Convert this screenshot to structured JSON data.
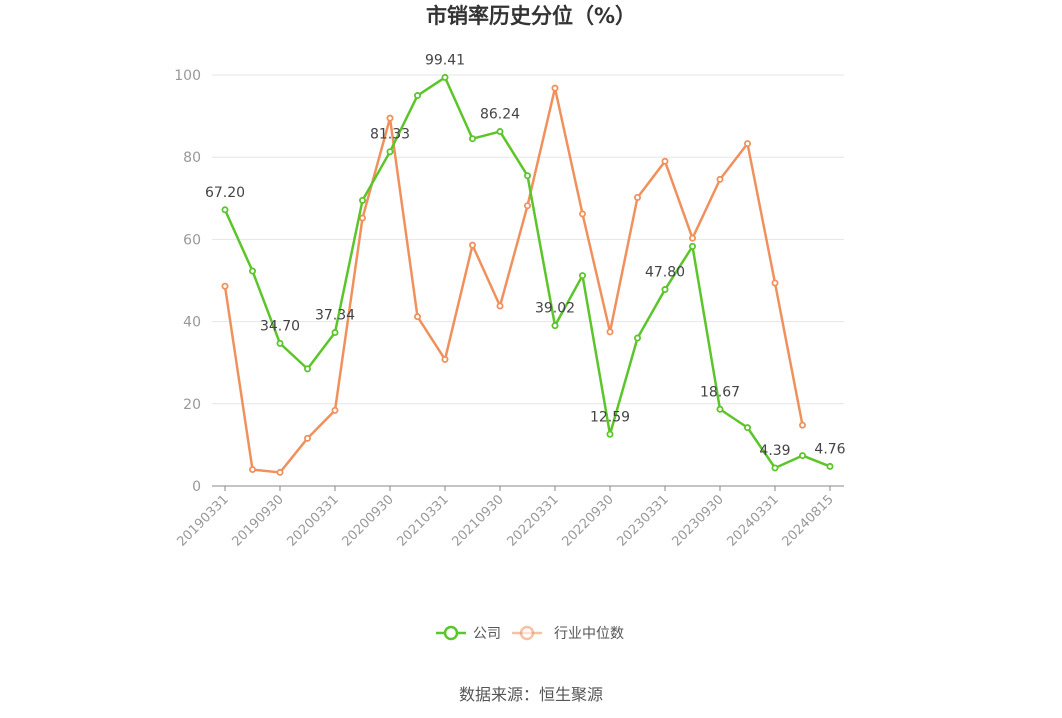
{
  "chart_data": {
    "type": "line",
    "title": "市销率历史分位（%）",
    "xlabel": "",
    "ylabel": "",
    "ylim": [
      0,
      100
    ],
    "yticks": [
      0,
      20,
      40,
      60,
      80,
      100
    ],
    "grid": true,
    "legend_position": "bottom",
    "x": [
      "20190331",
      "20190630",
      "20190930",
      "20191231",
      "20200331",
      "20200630",
      "20200930",
      "20201231",
      "20210331",
      "20210630",
      "20210930",
      "20211231",
      "20220331",
      "20220630",
      "20220930",
      "20221231",
      "20230331",
      "20230630",
      "20230930",
      "20231231",
      "20240331",
      "20240630",
      "20240815"
    ],
    "xtick_labels": [
      "20190331",
      "20190930",
      "20200331",
      "20200930",
      "20210331",
      "20210930",
      "20220331",
      "20220930",
      "20230331",
      "20230930",
      "20240331",
      "20240815"
    ],
    "series": [
      {
        "name": "公司",
        "color": "#5cc52b",
        "values": [
          67.2,
          52.3,
          34.7,
          28.5,
          37.34,
          69.5,
          81.33,
          95.0,
          99.41,
          84.5,
          86.24,
          75.5,
          39.02,
          51.2,
          12.59,
          36.0,
          47.8,
          58.3,
          18.67,
          14.2,
          4.39,
          7.4,
          4.76
        ],
        "data_labels": [
          {
            "index": 0,
            "text": "67.20"
          },
          {
            "index": 2,
            "text": "34.70"
          },
          {
            "index": 4,
            "text": "37.34"
          },
          {
            "index": 6,
            "text": "81.33"
          },
          {
            "index": 8,
            "text": "99.41"
          },
          {
            "index": 10,
            "text": "86.24"
          },
          {
            "index": 12,
            "text": "39.02"
          },
          {
            "index": 14,
            "text": "12.59"
          },
          {
            "index": 16,
            "text": "47.80"
          },
          {
            "index": 18,
            "text": "18.67"
          },
          {
            "index": 20,
            "text": "4.39"
          },
          {
            "index": 22,
            "text": "4.76"
          }
        ]
      },
      {
        "name": "行业中位数",
        "color": "#f0915d",
        "values": [
          48.6,
          4.0,
          3.3,
          11.6,
          18.4,
          65.2,
          89.5,
          41.2,
          30.8,
          58.6,
          43.8,
          68.2,
          96.8,
          66.2,
          37.5,
          70.2,
          79.0,
          60.3,
          74.6,
          83.3,
          49.4,
          14.8,
          null
        ]
      }
    ]
  },
  "source": "数据来源：恒生聚源"
}
